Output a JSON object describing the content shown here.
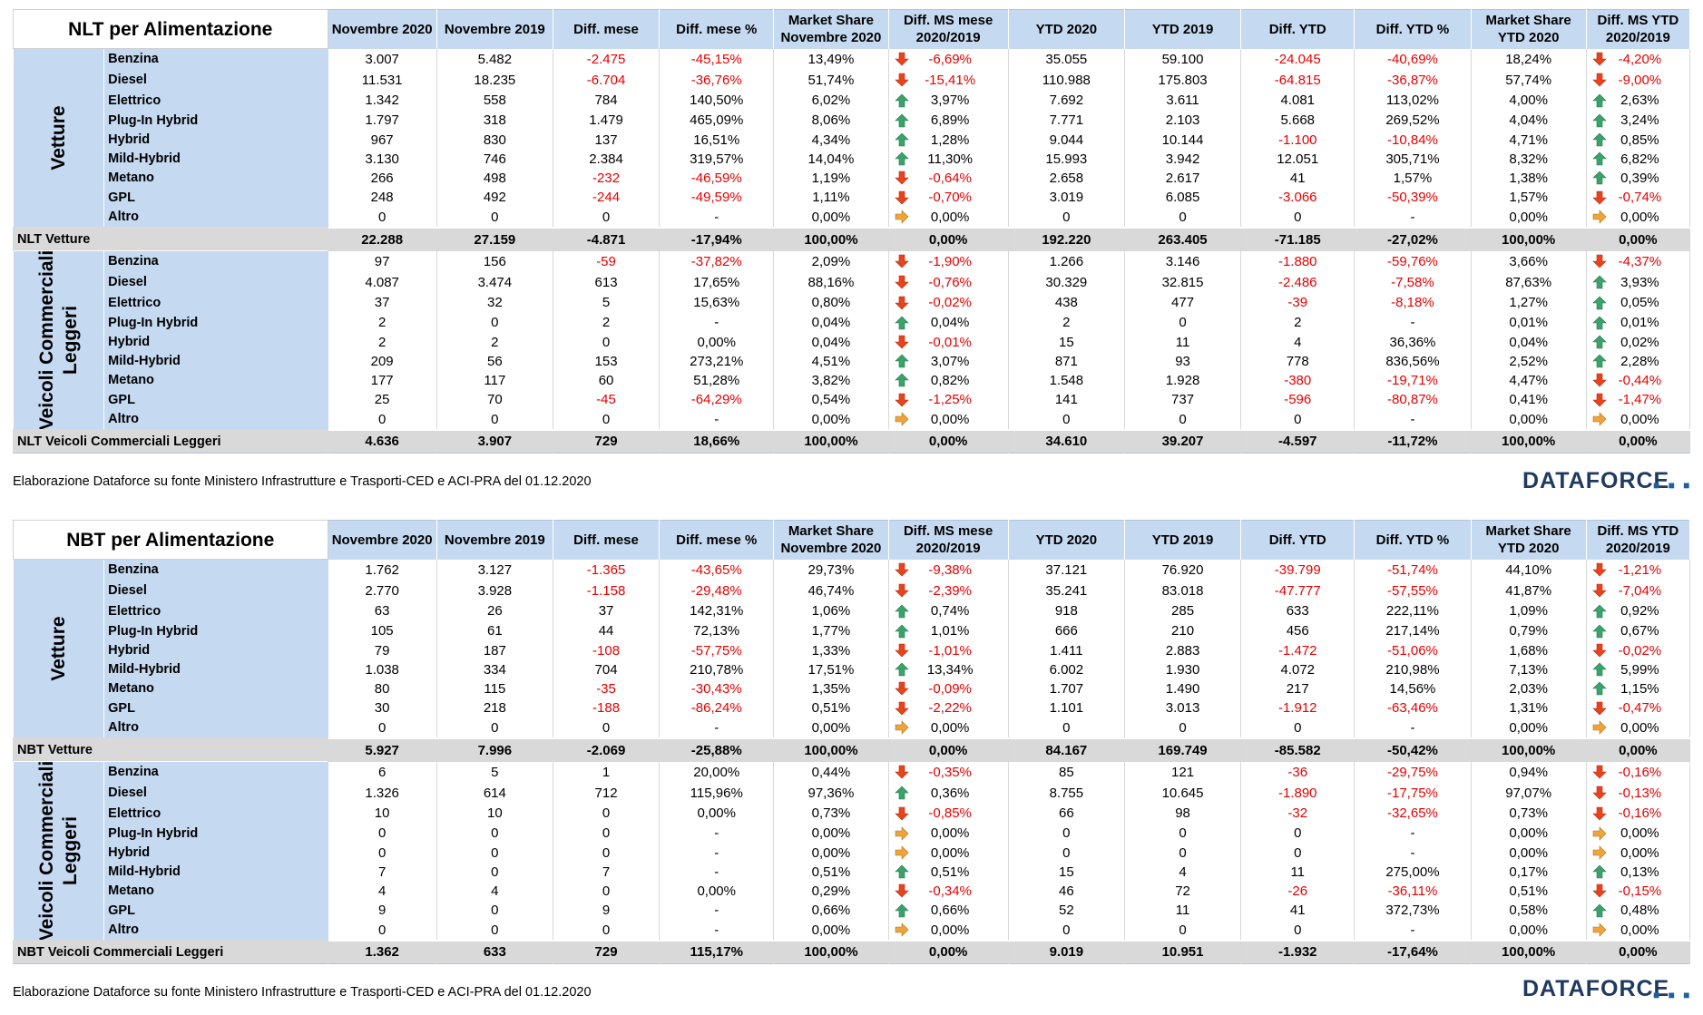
{
  "columns": [
    "Novembre 2020",
    "Novembre 2019",
    "Diff. mese",
    "Diff. mese %",
    "Market Share|Novembre 2020",
    "Diff. MS mese|2020/2019",
    "YTD 2020",
    "YTD 2019",
    "Diff. YTD",
    "Diff. YTD %",
    "Market Share|YTD 2020",
    "Diff. MS YTD|2020/2019"
  ],
  "note": "Elaborazione Dataforce su fonte Ministero Infrastrutture e Trasporti-CED e ACI-PRA del 01.12.2020",
  "logo": "DATAFORCE",
  "colors": {
    "header_bg": "#c5d9f1",
    "total_bg": "#d9d9d9",
    "negative": "#e60000",
    "arrow_up": "#3aa26b",
    "arrow_down": "#e8431a",
    "arrow_flat": "#f0a33a"
  },
  "tables": [
    {
      "title": "NLT per Alimentazione",
      "groups": [
        {
          "label": "Vetture",
          "rows": [
            [
              "Benzina",
              "3.007",
              "5.482",
              "-2.475",
              "-45,15%",
              "13,49%",
              "-6,69%",
              "35.055",
              "59.100",
              "-24.045",
              "-40,69%",
              "18,24%",
              "-4,20%"
            ],
            [
              "Diesel",
              "11.531",
              "18.235",
              "-6.704",
              "-36,76%",
              "51,74%",
              "-15,41%",
              "110.988",
              "175.803",
              "-64.815",
              "-36,87%",
              "57,74%",
              "-9,00%"
            ],
            [
              "Elettrico",
              "1.342",
              "558",
              "784",
              "140,50%",
              "6,02%",
              "3,97%",
              "7.692",
              "3.611",
              "4.081",
              "113,02%",
              "4,00%",
              "2,63%"
            ],
            [
              "Plug-In Hybrid",
              "1.797",
              "318",
              "1.479",
              "465,09%",
              "8,06%",
              "6,89%",
              "7.771",
              "2.103",
              "5.668",
              "269,52%",
              "4,04%",
              "3,24%"
            ],
            [
              "Hybrid",
              "967",
              "830",
              "137",
              "16,51%",
              "4,34%",
              "1,28%",
              "9.044",
              "10.144",
              "-1.100",
              "-10,84%",
              "4,71%",
              "0,85%"
            ],
            [
              "Mild-Hybrid",
              "3.130",
              "746",
              "2.384",
              "319,57%",
              "14,04%",
              "11,30%",
              "15.993",
              "3.942",
              "12.051",
              "305,71%",
              "8,32%",
              "6,82%"
            ],
            [
              "Metano",
              "266",
              "498",
              "-232",
              "-46,59%",
              "1,19%",
              "-0,64%",
              "2.658",
              "2.617",
              "41",
              "1,57%",
              "1,38%",
              "0,39%"
            ],
            [
              "GPL",
              "248",
              "492",
              "-244",
              "-49,59%",
              "1,11%",
              "-0,70%",
              "3.019",
              "6.085",
              "-3.066",
              "-50,39%",
              "1,57%",
              "-0,74%"
            ],
            [
              "Altro",
              "0",
              "0",
              "0",
              "-",
              "0,00%",
              "0,00%",
              "0",
              "0",
              "0",
              "-",
              "0,00%",
              "0,00%"
            ]
          ],
          "total": [
            "NLT Vetture",
            "22.288",
            "27.159",
            "-4.871",
            "-17,94%",
            "100,00%",
            "0,00%",
            "192.220",
            "263.405",
            "-71.185",
            "-27,02%",
            "100,00%",
            "0,00%"
          ]
        },
        {
          "label": "Veicoli Commerciali Leggeri",
          "rows": [
            [
              "Benzina",
              "97",
              "156",
              "-59",
              "-37,82%",
              "2,09%",
              "-1,90%",
              "1.266",
              "3.146",
              "-1.880",
              "-59,76%",
              "3,66%",
              "-4,37%"
            ],
            [
              "Diesel",
              "4.087",
              "3.474",
              "613",
              "17,65%",
              "88,16%",
              "-0,76%",
              "30.329",
              "32.815",
              "-2.486",
              "-7,58%",
              "87,63%",
              "3,93%"
            ],
            [
              "Elettrico",
              "37",
              "32",
              "5",
              "15,63%",
              "0,80%",
              "-0,02%",
              "438",
              "477",
              "-39",
              "-8,18%",
              "1,27%",
              "0,05%"
            ],
            [
              "Plug-In Hybrid",
              "2",
              "0",
              "2",
              "-",
              "0,04%",
              "0,04%",
              "2",
              "0",
              "2",
              "-",
              "0,01%",
              "0,01%"
            ],
            [
              "Hybrid",
              "2",
              "2",
              "0",
              "0,00%",
              "0,04%",
              "-0,01%",
              "15",
              "11",
              "4",
              "36,36%",
              "0,04%",
              "0,02%"
            ],
            [
              "Mild-Hybrid",
              "209",
              "56",
              "153",
              "273,21%",
              "4,51%",
              "3,07%",
              "871",
              "93",
              "778",
              "836,56%",
              "2,52%",
              "2,28%"
            ],
            [
              "Metano",
              "177",
              "117",
              "60",
              "51,28%",
              "3,82%",
              "0,82%",
              "1.548",
              "1.928",
              "-380",
              "-19,71%",
              "4,47%",
              "-0,44%"
            ],
            [
              "GPL",
              "25",
              "70",
              "-45",
              "-64,29%",
              "0,54%",
              "-1,25%",
              "141",
              "737",
              "-596",
              "-80,87%",
              "0,41%",
              "-1,47%"
            ],
            [
              "Altro",
              "0",
              "0",
              "0",
              "-",
              "0,00%",
              "0,00%",
              "0",
              "0",
              "0",
              "-",
              "0,00%",
              "0,00%"
            ]
          ],
          "total": [
            "NLT Veicoli Commerciali Leggeri",
            "4.636",
            "3.907",
            "729",
            "18,66%",
            "100,00%",
            "0,00%",
            "34.610",
            "39.207",
            "-4.597",
            "-11,72%",
            "100,00%",
            "0,00%"
          ]
        }
      ]
    },
    {
      "title": "NBT per Alimentazione",
      "groups": [
        {
          "label": "Vetture",
          "rows": [
            [
              "Benzina",
              "1.762",
              "3.127",
              "-1.365",
              "-43,65%",
              "29,73%",
              "-9,38%",
              "37.121",
              "76.920",
              "-39.799",
              "-51,74%",
              "44,10%",
              "-1,21%"
            ],
            [
              "Diesel",
              "2.770",
              "3.928",
              "-1.158",
              "-29,48%",
              "46,74%",
              "-2,39%",
              "35.241",
              "83.018",
              "-47.777",
              "-57,55%",
              "41,87%",
              "-7,04%"
            ],
            [
              "Elettrico",
              "63",
              "26",
              "37",
              "142,31%",
              "1,06%",
              "0,74%",
              "918",
              "285",
              "633",
              "222,11%",
              "1,09%",
              "0,92%"
            ],
            [
              "Plug-In Hybrid",
              "105",
              "61",
              "44",
              "72,13%",
              "1,77%",
              "1,01%",
              "666",
              "210",
              "456",
              "217,14%",
              "0,79%",
              "0,67%"
            ],
            [
              "Hybrid",
              "79",
              "187",
              "-108",
              "-57,75%",
              "1,33%",
              "-1,01%",
              "1.411",
              "2.883",
              "-1.472",
              "-51,06%",
              "1,68%",
              "-0,02%"
            ],
            [
              "Mild-Hybrid",
              "1.038",
              "334",
              "704",
              "210,78%",
              "17,51%",
              "13,34%",
              "6.002",
              "1.930",
              "4.072",
              "210,98%",
              "7,13%",
              "5,99%"
            ],
            [
              "Metano",
              "80",
              "115",
              "-35",
              "-30,43%",
              "1,35%",
              "-0,09%",
              "1.707",
              "1.490",
              "217",
              "14,56%",
              "2,03%",
              "1,15%"
            ],
            [
              "GPL",
              "30",
              "218",
              "-188",
              "-86,24%",
              "0,51%",
              "-2,22%",
              "1.101",
              "3.013",
              "-1.912",
              "-63,46%",
              "1,31%",
              "-0,47%"
            ],
            [
              "Altro",
              "0",
              "0",
              "0",
              "-",
              "0,00%",
              "0,00%",
              "0",
              "0",
              "0",
              "-",
              "0,00%",
              "0,00%"
            ]
          ],
          "total": [
            "NBT Vetture",
            "5.927",
            "7.996",
            "-2.069",
            "-25,88%",
            "100,00%",
            "0,00%",
            "84.167",
            "169.749",
            "-85.582",
            "-50,42%",
            "100,00%",
            "0,00%"
          ]
        },
        {
          "label": "Veicoli Commerciali Leggeri",
          "rows": [
            [
              "Benzina",
              "6",
              "5",
              "1",
              "20,00%",
              "0,44%",
              "-0,35%",
              "85",
              "121",
              "-36",
              "-29,75%",
              "0,94%",
              "-0,16%"
            ],
            [
              "Diesel",
              "1.326",
              "614",
              "712",
              "115,96%",
              "97,36%",
              "0,36%",
              "8.755",
              "10.645",
              "-1.890",
              "-17,75%",
              "97,07%",
              "-0,13%"
            ],
            [
              "Elettrico",
              "10",
              "10",
              "0",
              "0,00%",
              "0,73%",
              "-0,85%",
              "66",
              "98",
              "-32",
              "-32,65%",
              "0,73%",
              "-0,16%"
            ],
            [
              "Plug-In Hybrid",
              "0",
              "0",
              "0",
              "-",
              "0,00%",
              "0,00%",
              "0",
              "0",
              "0",
              "-",
              "0,00%",
              "0,00%"
            ],
            [
              "Hybrid",
              "0",
              "0",
              "0",
              "-",
              "0,00%",
              "0,00%",
              "0",
              "0",
              "0",
              "-",
              "0,00%",
              "0,00%"
            ],
            [
              "Mild-Hybrid",
              "7",
              "0",
              "7",
              "-",
              "0,51%",
              "0,51%",
              "15",
              "4",
              "11",
              "275,00%",
              "0,17%",
              "0,13%"
            ],
            [
              "Metano",
              "4",
              "4",
              "0",
              "0,00%",
              "0,29%",
              "-0,34%",
              "46",
              "72",
              "-26",
              "-36,11%",
              "0,51%",
              "-0,15%"
            ],
            [
              "GPL",
              "9",
              "0",
              "9",
              "-",
              "0,66%",
              "0,66%",
              "52",
              "11",
              "41",
              "372,73%",
              "0,58%",
              "0,48%"
            ],
            [
              "Altro",
              "0",
              "0",
              "0",
              "-",
              "0,00%",
              "0,00%",
              "0",
              "0",
              "0",
              "-",
              "0,00%",
              "0,00%"
            ]
          ],
          "total": [
            "NBT Veicoli Commerciali Leggeri",
            "1.362",
            "633",
            "729",
            "115,17%",
            "100,00%",
            "0,00%",
            "9.019",
            "10.951",
            "-1.932",
            "-17,64%",
            "100,00%",
            "0,00%"
          ]
        }
      ]
    }
  ]
}
